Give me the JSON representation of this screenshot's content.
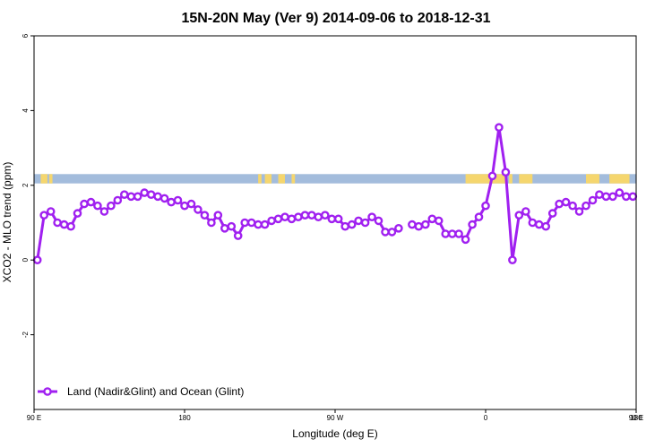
{
  "chart_data": {
    "type": "line",
    "title": "15N-20N May (Ver 9)   2014-09-06 to 2018-12-31",
    "xlabel": "Longitude (deg E)",
    "ylabel": "XCO2 - MLO trend (ppm)",
    "xlim": [
      90,
      450
    ],
    "ylim": [
      -4,
      6
    ],
    "x_ticks": [
      {
        "value": 90,
        "label": "90 E"
      },
      {
        "value": 180,
        "label": "180"
      },
      {
        "value": 270,
        "label": "90 W"
      },
      {
        "value": 360,
        "label": "0"
      },
      {
        "value": 450,
        "label": "90 E"
      },
      {
        "value": 540,
        "label": "180"
      }
    ],
    "y_ticks": [
      {
        "value": -2,
        "label": "-2"
      },
      {
        "value": 0,
        "label": "0"
      },
      {
        "value": 2,
        "label": "2"
      },
      {
        "value": 4,
        "label": "4"
      },
      {
        "value": 6,
        "label": "6"
      }
    ],
    "series_color": "#a020f0",
    "land_color": "#f5d66e",
    "ocean_color": "#a3bcdc",
    "map_strip": {
      "y_min": 2.05,
      "y_max": 2.3
    },
    "land_spans": [
      [
        94,
        98
      ],
      [
        99,
        101
      ],
      [
        224,
        226
      ],
      [
        228,
        232
      ],
      [
        236,
        240
      ],
      [
        244,
        246
      ],
      [
        348,
        372
      ],
      [
        374,
        376
      ],
      [
        380,
        388
      ],
      [
        420,
        428
      ],
      [
        434,
        446
      ]
    ],
    "legend": {
      "label": "Land (Nadir&Glint) and Ocean (Glint)",
      "position": "bottom-left"
    },
    "series": [
      {
        "name": "Land (Nadir&Glint) and Ocean (Glint)",
        "segments": [
          [
            [
              92,
              0.0
            ],
            [
              96,
              1.2
            ],
            [
              100,
              1.3
            ],
            [
              104,
              1.0
            ],
            [
              108,
              0.95
            ],
            [
              112,
              0.9
            ],
            [
              116,
              1.25
            ],
            [
              120,
              1.5
            ],
            [
              124,
              1.55
            ],
            [
              128,
              1.45
            ],
            [
              132,
              1.3
            ],
            [
              136,
              1.45
            ],
            [
              140,
              1.6
            ],
            [
              144,
              1.75
            ],
            [
              148,
              1.7
            ],
            [
              152,
              1.7
            ],
            [
              156,
              1.8
            ],
            [
              160,
              1.75
            ],
            [
              164,
              1.7
            ],
            [
              168,
              1.65
            ],
            [
              172,
              1.55
            ],
            [
              176,
              1.6
            ],
            [
              180,
              1.45
            ],
            [
              184,
              1.5
            ],
            [
              188,
              1.35
            ],
            [
              192,
              1.2
            ],
            [
              196,
              1.0
            ],
            [
              200,
              1.2
            ],
            [
              204,
              0.85
            ],
            [
              208,
              0.9
            ],
            [
              212,
              0.65
            ],
            [
              216,
              1.0
            ],
            [
              220,
              1.0
            ],
            [
              224,
              0.95
            ],
            [
              228,
              0.95
            ],
            [
              232,
              1.05
            ],
            [
              236,
              1.1
            ],
            [
              240,
              1.15
            ],
            [
              244,
              1.1
            ],
            [
              248,
              1.15
            ],
            [
              252,
              1.2
            ],
            [
              256,
              1.2
            ],
            [
              260,
              1.15
            ],
            [
              264,
              1.2
            ],
            [
              268,
              1.1
            ],
            [
              272,
              1.1
            ],
            [
              276,
              0.9
            ],
            [
              280,
              0.95
            ],
            [
              284,
              1.05
            ],
            [
              288,
              1.0
            ],
            [
              292,
              1.15
            ],
            [
              296,
              1.05
            ],
            [
              300,
              0.75
            ],
            [
              304,
              0.75
            ],
            [
              308,
              0.85
            ]
          ],
          [
            [
              316,
              0.95
            ],
            [
              320,
              0.9
            ],
            [
              324,
              0.95
            ],
            [
              328,
              1.1
            ],
            [
              332,
              1.05
            ],
            [
              336,
              0.7
            ],
            [
              340,
              0.7
            ],
            [
              344,
              0.7
            ],
            [
              348,
              0.55
            ],
            [
              352,
              0.95
            ],
            [
              356,
              1.15
            ],
            [
              360,
              1.45
            ],
            [
              364,
              2.25
            ],
            [
              368,
              3.55
            ],
            [
              372,
              2.35
            ],
            [
              376,
              0.0
            ],
            [
              380,
              1.2
            ],
            [
              384,
              1.3
            ],
            [
              388,
              1.0
            ],
            [
              392,
              0.95
            ],
            [
              396,
              0.9
            ],
            [
              400,
              1.25
            ],
            [
              404,
              1.5
            ],
            [
              408,
              1.55
            ],
            [
              412,
              1.45
            ],
            [
              416,
              1.3
            ],
            [
              420,
              1.45
            ],
            [
              424,
              1.6
            ],
            [
              428,
              1.75
            ],
            [
              432,
              1.7
            ],
            [
              436,
              1.7
            ],
            [
              440,
              1.8
            ],
            [
              444,
              1.7
            ],
            [
              448,
              1.7
            ]
          ]
        ]
      }
    ]
  }
}
